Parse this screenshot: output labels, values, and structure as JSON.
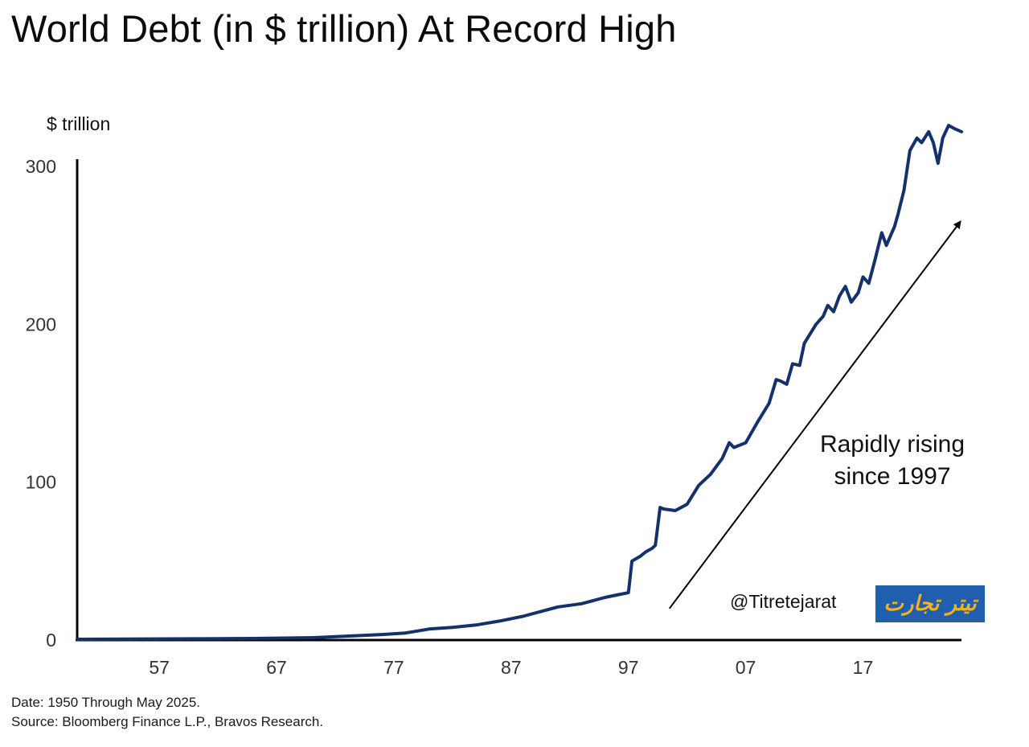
{
  "title": "World Debt (in $ trillion) At Record High",
  "footnote": {
    "date": "Date: 1950 Through May 2025.",
    "source": "Source: Bloomberg Finance L.P., Bravos Research."
  },
  "watermark": {
    "handle": "@Titretejarat",
    "logo_text": "تیتر تجارت",
    "logo_bg": "#1f5fae",
    "logo_fg": "#f3b21e"
  },
  "chart_data": {
    "type": "line",
    "ylabel": "$ trillion",
    "xlabel": "",
    "ylim": [
      0,
      300
    ],
    "xlim": [
      1950,
      2025.4
    ],
    "y_ticks": [
      0,
      100,
      200,
      300
    ],
    "x_ticks": [
      {
        "value": 1957,
        "label": "57"
      },
      {
        "value": 1967,
        "label": "67"
      },
      {
        "value": 1977,
        "label": "77"
      },
      {
        "value": 1987,
        "label": "87"
      },
      {
        "value": 1997,
        "label": "97"
      },
      {
        "value": 2007,
        "label": "07"
      },
      {
        "value": 2017,
        "label": "17"
      }
    ],
    "line_color": "#15316b",
    "grid": false,
    "series": [
      {
        "points": [
          [
            1950,
            0.5
          ],
          [
            1960,
            0.8
          ],
          [
            1965,
            1.0
          ],
          [
            1970,
            1.5
          ],
          [
            1973,
            2.5
          ],
          [
            1976,
            3.5
          ],
          [
            1978,
            4.5
          ],
          [
            1980,
            7
          ],
          [
            1982,
            8
          ],
          [
            1984,
            9.5
          ],
          [
            1986,
            12
          ],
          [
            1988,
            15
          ],
          [
            1990,
            19
          ],
          [
            1991,
            21
          ],
          [
            1992,
            22
          ],
          [
            1993,
            23
          ],
          [
            1994,
            25
          ],
          [
            1995,
            27
          ],
          [
            1996,
            28.5
          ],
          [
            1997,
            30
          ],
          [
            1997.3,
            50
          ],
          [
            1998,
            53
          ],
          [
            1998.5,
            56
          ],
          [
            1999,
            58
          ],
          [
            1999.3,
            60
          ],
          [
            1999.7,
            84
          ],
          [
            2000,
            83
          ],
          [
            2001,
            82
          ],
          [
            2002,
            86
          ],
          [
            2003,
            98
          ],
          [
            2004,
            105
          ],
          [
            2005,
            115
          ],
          [
            2005.6,
            125
          ],
          [
            2006,
            122
          ],
          [
            2007,
            125
          ],
          [
            2008,
            138
          ],
          [
            2009,
            150
          ],
          [
            2009.6,
            165
          ],
          [
            2010,
            164
          ],
          [
            2010.5,
            162
          ],
          [
            2011,
            175
          ],
          [
            2011.6,
            174
          ],
          [
            2012,
            188
          ],
          [
            2013,
            200
          ],
          [
            2013.6,
            205
          ],
          [
            2014,
            212
          ],
          [
            2014.5,
            208
          ],
          [
            2015,
            218
          ],
          [
            2015.5,
            224
          ],
          [
            2016,
            214
          ],
          [
            2016.6,
            220
          ],
          [
            2017,
            230
          ],
          [
            2017.5,
            226
          ],
          [
            2018,
            240
          ],
          [
            2018.6,
            258
          ],
          [
            2019,
            250
          ],
          [
            2019.7,
            262
          ],
          [
            2020,
            270
          ],
          [
            2020.5,
            285
          ],
          [
            2021,
            310
          ],
          [
            2021.6,
            318
          ],
          [
            2022,
            315
          ],
          [
            2022.6,
            322
          ],
          [
            2023,
            315
          ],
          [
            2023.4,
            302
          ],
          [
            2023.8,
            318
          ],
          [
            2024.3,
            326
          ],
          [
            2024.8,
            324
          ],
          [
            2025.4,
            322
          ]
        ]
      }
    ],
    "annotation": {
      "lines": [
        "Rapidly rising",
        "since 1997"
      ],
      "arrow_from": [
        2000.5,
        20
      ],
      "arrow_to": [
        2025.3,
        265
      ]
    }
  }
}
